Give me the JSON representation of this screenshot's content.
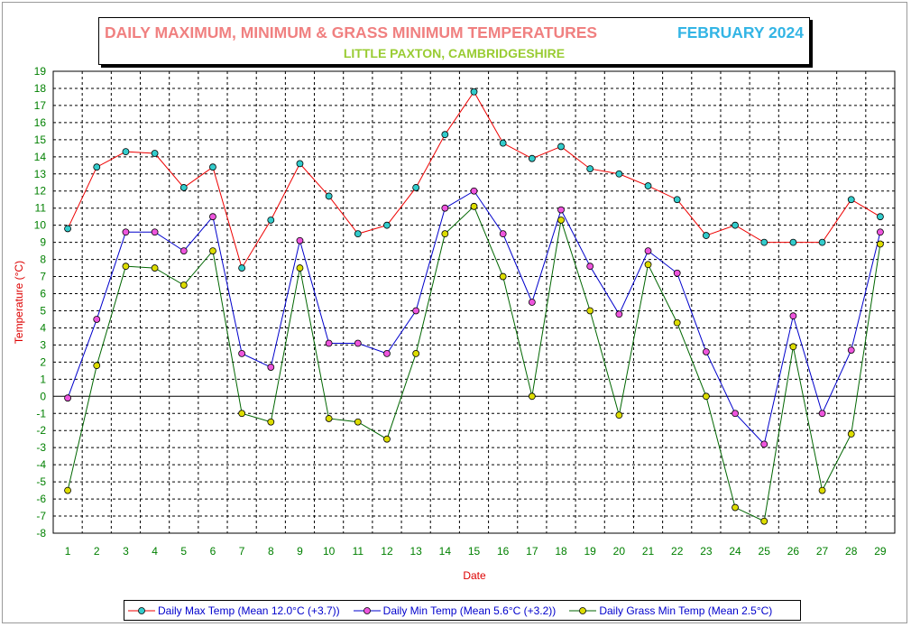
{
  "title": {
    "main": "DAILY MAXIMUM, MINIMUM & GRASS MINIMUM TEMPERATURES",
    "month": "FEBRUARY 2024",
    "subtitle": "LITTLE PAXTON, CAMBRIDGESHIRE"
  },
  "colors": {
    "title_main": "#f08080",
    "title_month": "#33b5e5",
    "subtitle": "#99cc33",
    "axis_text": "#008000",
    "axis_label": "#dd0000",
    "max_line": "#ee0000",
    "max_marker": "#33cccc",
    "min_line": "#0000cc",
    "min_marker": "#ee55dd",
    "grass_line": "#006600",
    "grass_marker": "#dddd00"
  },
  "chart_data": {
    "type": "line",
    "xlabel": "Date",
    "ylabel": "Temperature (°C)",
    "ylim": [
      -8,
      19
    ],
    "xlim": [
      1,
      29
    ],
    "grid": true,
    "legend_position": "bottom",
    "x": [
      1,
      2,
      3,
      4,
      5,
      6,
      7,
      8,
      9,
      10,
      11,
      12,
      13,
      14,
      15,
      16,
      17,
      18,
      19,
      20,
      21,
      22,
      23,
      24,
      25,
      26,
      27,
      28,
      29
    ],
    "series": [
      {
        "name": "Daily Max Temp (Mean 12.0°C (+3.7))",
        "values": [
          9.8,
          13.4,
          14.3,
          14.2,
          12.2,
          13.4,
          7.5,
          10.3,
          13.6,
          11.7,
          9.5,
          10.0,
          12.2,
          15.3,
          17.8,
          14.8,
          13.9,
          14.6,
          13.3,
          13.0,
          12.3,
          11.5,
          9.4,
          10.0,
          9.0,
          9.0,
          9.0,
          11.5,
          10.5
        ]
      },
      {
        "name": "Daily Min Temp (Mean 5.6°C (+3.2))",
        "values": [
          -0.1,
          4.5,
          9.6,
          9.6,
          8.5,
          10.5,
          2.5,
          1.7,
          9.1,
          3.1,
          3.1,
          2.5,
          5.0,
          11.0,
          12.0,
          9.5,
          5.5,
          10.9,
          7.6,
          4.8,
          8.5,
          7.2,
          2.6,
          -1.0,
          -2.8,
          4.7,
          -1.0,
          2.7,
          9.6
        ]
      },
      {
        "name": "Daily Grass Min Temp (Mean 2.5°C)",
        "values": [
          -5.5,
          1.8,
          7.6,
          7.5,
          6.5,
          8.5,
          -1.0,
          -1.5,
          7.5,
          -1.3,
          -1.5,
          -2.5,
          2.5,
          9.5,
          11.1,
          7.0,
          0.0,
          10.3,
          5.0,
          -1.1,
          7.7,
          4.3,
          0.0,
          -6.5,
          -7.3,
          2.9,
          -5.5,
          -2.2,
          8.9
        ]
      }
    ]
  }
}
